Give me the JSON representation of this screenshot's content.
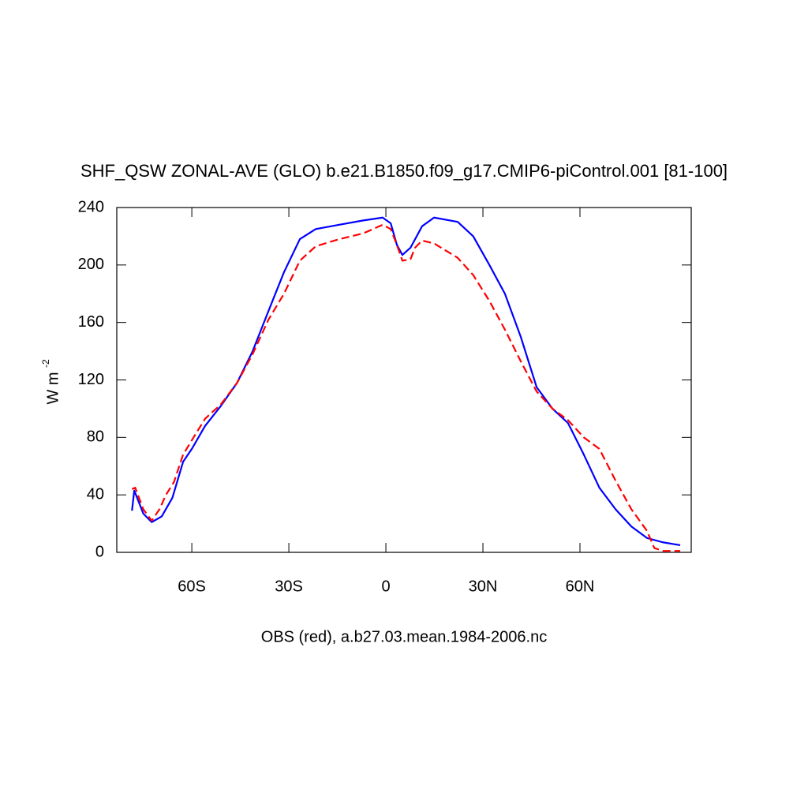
{
  "chart_data": {
    "type": "line",
    "title": "SHF_QSW ZONAL-AVE (GLO) b.e21.B1850.f09_g17.CMIP6-piControl.001 [81-100]",
    "xlabel": "OBS (red), a.b27.03.mean.1984-2006.nc",
    "ylabel": "W m",
    "ylabel_sup": "-2",
    "xlim": [
      -83.2,
      94.4
    ],
    "ylim": [
      0,
      240
    ],
    "xticks": [
      {
        "value": -60,
        "label": "60S"
      },
      {
        "value": -30,
        "label": "30S"
      },
      0,
      {
        "value": 30,
        "label": "30N"
      },
      {
        "value": 60,
        "label": "60N"
      }
    ],
    "yticks": [
      0,
      40,
      80,
      120,
      160,
      200,
      240
    ],
    "series": [
      {
        "color": "#0000ff",
        "dash": false,
        "x": [
          -78.5,
          -77.8,
          -75,
          -72.4,
          -69.3,
          -66,
          -62.7,
          -60,
          -55.9,
          -51,
          -46,
          -41.2,
          -36.3,
          -31.5,
          -26.6,
          -21.7,
          -14.4,
          -7,
          -1,
          1.5,
          3.4,
          5.1,
          7.6,
          11.2,
          14.9,
          22.2,
          27,
          32,
          36.8,
          41.7,
          46.6,
          51.5,
          56.3,
          61.2,
          66,
          71,
          75.9,
          80.7,
          85.6,
          91
        ],
        "values": [
          29,
          43,
          27,
          21,
          25,
          38,
          63,
          72,
          88,
          102,
          118,
          140,
          168,
          195,
          218,
          225,
          228,
          231,
          233,
          229,
          214,
          207,
          212,
          227,
          233,
          230,
          220,
          200,
          180,
          150,
          115,
          100,
          90,
          68,
          45,
          30,
          18,
          10,
          7,
          5
        ]
      },
      {
        "color": "#ff0000",
        "dash": true,
        "x": [
          -78.5,
          -77.5,
          -75,
          -72.4,
          -70,
          -68,
          -65.5,
          -62.7,
          -60,
          -55.9,
          -51,
          -46,
          -41.2,
          -36.3,
          -31.5,
          -26.6,
          -21.7,
          -14.4,
          -7,
          -1,
          1.5,
          3.4,
          5.1,
          7.6,
          9,
          11.2,
          14.9,
          22.2,
          27,
          32,
          36.8,
          41.7,
          46.6,
          51.5,
          56.3,
          61.2,
          66,
          71,
          75.9,
          80.7,
          83,
          85.6,
          91
        ],
        "values": [
          44,
          45,
          30,
          22,
          30,
          40,
          49,
          68,
          78,
          93,
          103,
          118,
          138,
          162,
          180,
          203,
          213,
          218,
          222,
          228,
          225,
          214,
          203,
          204,
          212,
          217,
          215,
          205,
          193,
          175,
          155,
          133,
          112,
          100,
          92,
          80,
          72,
          50,
          30,
          15,
          3,
          1,
          1
        ]
      }
    ]
  }
}
